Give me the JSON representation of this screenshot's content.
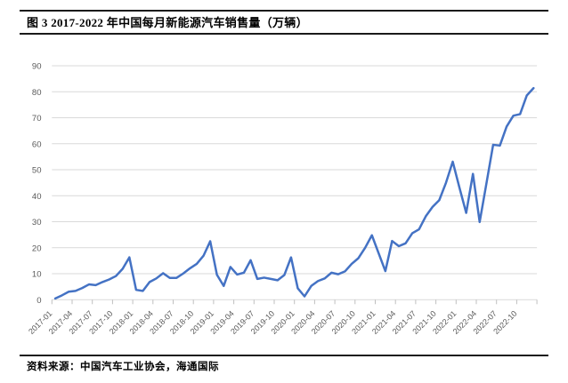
{
  "header": {
    "title": "图 3 2017-2022 年中国每月新能源汽车销售量（万辆）"
  },
  "footer": {
    "source": "资料来源：中国汽车工业协会，海通国际"
  },
  "chart_data": {
    "type": "line",
    "title": "2017-2022 年中国每月新能源汽车销售量（万辆）",
    "xlabel": "",
    "ylabel": "",
    "ylim": [
      0,
      90
    ],
    "y_ticks": [
      0,
      10,
      20,
      30,
      40,
      50,
      60,
      70,
      80,
      90
    ],
    "x_tick_interval": 3,
    "grid": "horizontal",
    "legend": "none",
    "line_color": "#4472C4",
    "gridline_color": "#D9D9D9",
    "tick_color": "#BFBFBF",
    "axis_label_color": "#595959",
    "x": [
      "2017-01",
      "2017-02",
      "2017-03",
      "2017-04",
      "2017-05",
      "2017-06",
      "2017-07",
      "2017-08",
      "2017-09",
      "2017-10",
      "2017-11",
      "2017-12",
      "2018-01",
      "2018-02",
      "2018-03",
      "2018-04",
      "2018-05",
      "2018-06",
      "2018-07",
      "2018-08",
      "2018-09",
      "2018-10",
      "2018-11",
      "2018-12",
      "2019-01",
      "2019-02",
      "2019-03",
      "2019-04",
      "2019-05",
      "2019-06",
      "2019-07",
      "2019-08",
      "2019-09",
      "2019-10",
      "2019-11",
      "2019-12",
      "2020-01",
      "2020-02",
      "2020-03",
      "2020-04",
      "2020-05",
      "2020-06",
      "2020-07",
      "2020-08",
      "2020-09",
      "2020-10",
      "2020-11",
      "2020-12",
      "2021-01",
      "2021-02",
      "2021-03",
      "2021-04",
      "2021-05",
      "2021-06",
      "2021-07",
      "2021-08",
      "2021-09",
      "2021-10",
      "2021-11",
      "2021-12",
      "2022-01",
      "2022-02",
      "2022-03",
      "2022-04",
      "2022-05",
      "2022-06",
      "2022-07",
      "2022-08",
      "2022-09",
      "2022-10",
      "2022-11",
      "2022-12"
    ],
    "series": [
      {
        "name": "中国每月新能源汽车销售量（万辆）",
        "values": [
          0.5,
          1.7,
          3.1,
          3.4,
          4.5,
          5.9,
          5.6,
          6.8,
          7.8,
          9.1,
          11.9,
          16.3,
          3.8,
          3.4,
          6.8,
          8.2,
          10.2,
          8.4,
          8.4,
          10.1,
          12.1,
          13.8,
          16.9,
          22.5,
          9.6,
          5.3,
          12.6,
          9.7,
          10.4,
          15.2,
          8.0,
          8.5,
          8.0,
          7.5,
          9.5,
          16.3,
          4.4,
          1.3,
          5.3,
          7.2,
          8.2,
          10.4,
          9.8,
          10.9,
          13.8,
          16.0,
          20.0,
          24.8,
          17.9,
          11.0,
          22.6,
          20.6,
          21.7,
          25.6,
          27.1,
          32.1,
          35.7,
          38.3,
          45.0,
          53.1,
          43.1,
          33.4,
          48.4,
          29.9,
          44.7,
          59.6,
          59.3,
          66.6,
          70.8,
          71.4,
          78.6,
          81.4
        ]
      }
    ]
  }
}
